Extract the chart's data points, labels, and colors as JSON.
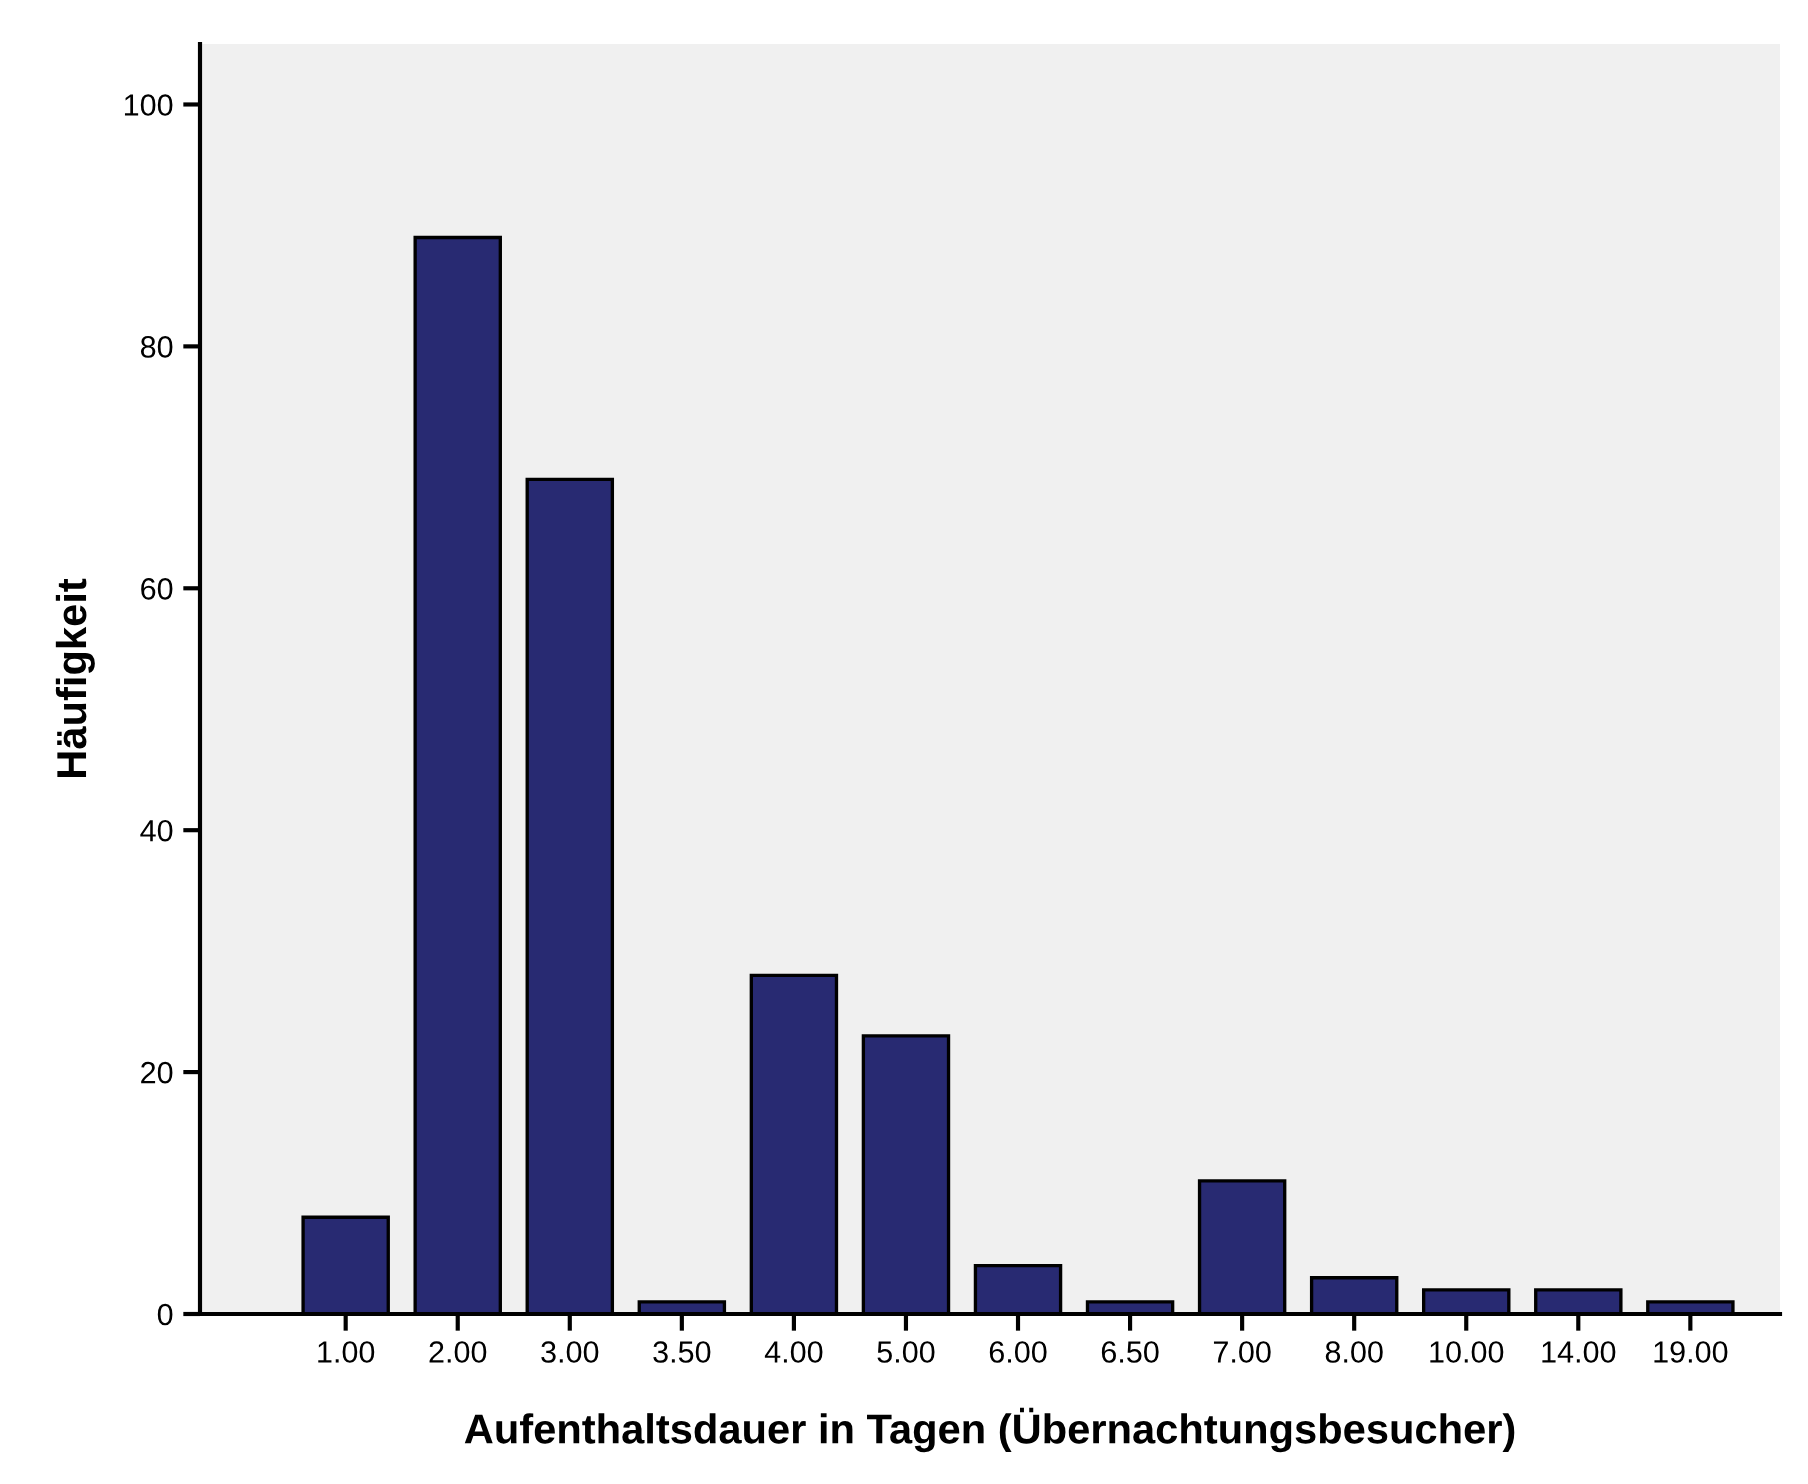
{
  "chart_data": {
    "type": "bar",
    "xlabel": "Aufenthaltsdauer in Tagen (Übernachtungsbesucher)",
    "ylabel": "Häufigkeit",
    "categories": [
      "1.00",
      "2.00",
      "3.00",
      "3.50",
      "4.00",
      "5.00",
      "6.00",
      "6.50",
      "7.00",
      "8.00",
      "10.00",
      "14.00",
      "19.00"
    ],
    "values": [
      8,
      89,
      69,
      1,
      28,
      23,
      4,
      1,
      11,
      3,
      2,
      2,
      1
    ],
    "color": "#282a72",
    "ylim": [
      0,
      105
    ],
    "yticks": [
      0,
      20,
      40,
      60,
      80,
      100
    ],
    "grid": false
  }
}
